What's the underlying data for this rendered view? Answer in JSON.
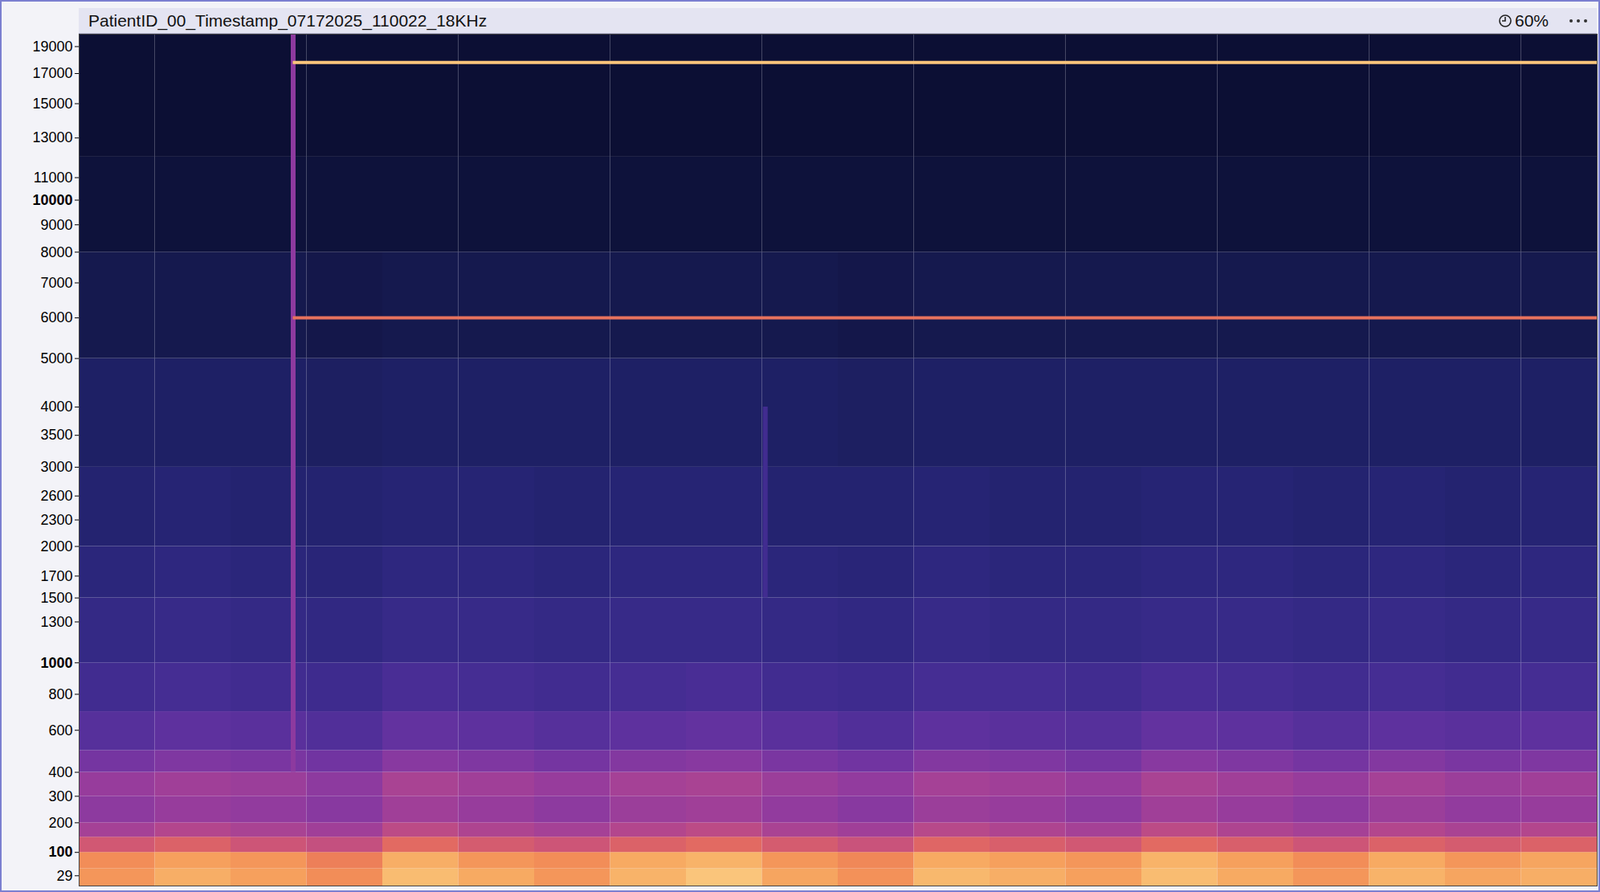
{
  "header": {
    "title": "PatientID_00_Timestamp_07172025_110022_18KHz",
    "zoom": "60%"
  },
  "chart_data": {
    "type": "heatmap",
    "tick_labels": "y",
    "xlim": [
      0,
      100
    ],
    "ylim": [
      0,
      20000
    ],
    "yticks": [
      19000,
      17000,
      15000,
      13000,
      11000,
      10000,
      9000,
      8000,
      7000,
      6000,
      5000,
      4000,
      3500,
      3000,
      2600,
      2300,
      2000,
      1700,
      1500,
      1300,
      1000,
      800,
      600,
      400,
      300,
      200,
      100,
      29
    ],
    "clim": [
      0,
      100
    ],
    "x_edges": [
      0,
      5,
      10,
      15,
      20,
      25,
      30,
      35,
      40,
      45,
      50,
      55,
      60,
      65,
      70,
      75,
      80,
      85,
      90,
      95,
      100
    ],
    "y_edges": [
      0,
      50,
      100,
      150,
      200,
      300,
      400,
      500,
      700,
      1000,
      1500,
      2000,
      3000,
      5000,
      8000,
      12000,
      20000
    ],
    "cells": [
      [
        80,
        85,
        82,
        78,
        88,
        84,
        80,
        86,
        90,
        83,
        79,
        87,
        85,
        82,
        88,
        84,
        80,
        86,
        83,
        85
      ],
      [
        78,
        82,
        80,
        75,
        85,
        80,
        78,
        84,
        86,
        80,
        77,
        84,
        82,
        80,
        86,
        82,
        78,
        84,
        80,
        83
      ],
      [
        65,
        68,
        64,
        62,
        70,
        66,
        64,
        68,
        70,
        66,
        63,
        69,
        67,
        65,
        70,
        67,
        64,
        68,
        66,
        68
      ],
      [
        55,
        58,
        56,
        54,
        60,
        57,
        55,
        58,
        60,
        56,
        54,
        59,
        57,
        55,
        60,
        57,
        55,
        58,
        56,
        58
      ],
      [
        50,
        52,
        51,
        49,
        54,
        52,
        50,
        53,
        54,
        51,
        49,
        53,
        52,
        50,
        54,
        52,
        50,
        53,
        51,
        52
      ],
      [
        52,
        54,
        53,
        50,
        56,
        54,
        52,
        55,
        56,
        53,
        51,
        55,
        54,
        52,
        56,
        54,
        52,
        55,
        53,
        54
      ],
      [
        45,
        47,
        46,
        44,
        49,
        47,
        45,
        48,
        49,
        46,
        44,
        48,
        47,
        45,
        49,
        47,
        45,
        48,
        46,
        47
      ],
      [
        38,
        40,
        39,
        37,
        41,
        40,
        38,
        40,
        41,
        39,
        37,
        40,
        39,
        38,
        41,
        40,
        38,
        40,
        39,
        40
      ],
      [
        33,
        34,
        33,
        32,
        35,
        34,
        33,
        34,
        35,
        33,
        32,
        34,
        34,
        33,
        35,
        34,
        33,
        34,
        33,
        34
      ],
      [
        29,
        30,
        29,
        28,
        30,
        30,
        29,
        30,
        30,
        29,
        28,
        30,
        29,
        29,
        30,
        30,
        29,
        30,
        29,
        30
      ],
      [
        26,
        27,
        26,
        25,
        27,
        27,
        26,
        27,
        27,
        26,
        25,
        27,
        26,
        26,
        27,
        27,
        26,
        27,
        26,
        27
      ],
      [
        23,
        24,
        23,
        23,
        24,
        24,
        23,
        24,
        24,
        23,
        23,
        24,
        23,
        23,
        24,
        24,
        23,
        24,
        23,
        24
      ],
      [
        20,
        20,
        20,
        19,
        20,
        20,
        20,
        20,
        20,
        20,
        19,
        20,
        20,
        20,
        20,
        20,
        20,
        20,
        20,
        20
      ],
      [
        14,
        14,
        14,
        13,
        14,
        14,
        14,
        14,
        14,
        14,
        13,
        14,
        14,
        14,
        14,
        14,
        14,
        14,
        14,
        14
      ],
      [
        9,
        9,
        9,
        9,
        9,
        9,
        9,
        9,
        9,
        9,
        9,
        9,
        9,
        9,
        9,
        9,
        9,
        9,
        9,
        9
      ],
      [
        7,
        7,
        7,
        7,
        7,
        7,
        7,
        7,
        7,
        7,
        7,
        7,
        7,
        7,
        7,
        7,
        7,
        7,
        7,
        7
      ]
    ],
    "tones": [
      {
        "frequency": 17800,
        "start": 14.1,
        "end": 100,
        "level": 90
      },
      {
        "frequency": 6000,
        "start": 14.1,
        "end": 100,
        "level": 72
      }
    ],
    "transients": [
      {
        "time": 14.1,
        "fmin": 400,
        "fmax": 20000,
        "level": 50
      },
      {
        "time": 45.2,
        "fmin": 1500,
        "fmax": 4000,
        "level": 33
      }
    ]
  }
}
